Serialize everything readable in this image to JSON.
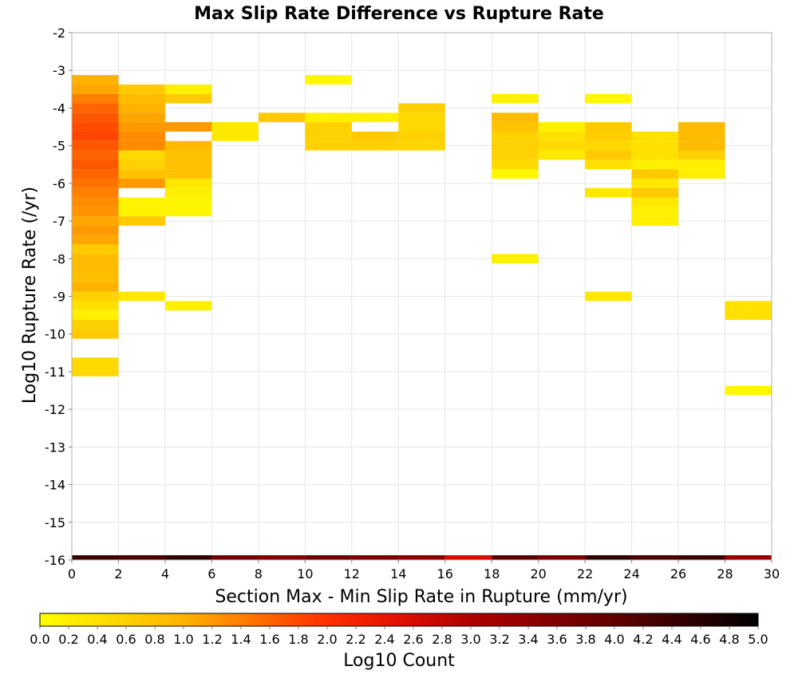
{
  "chart_data": {
    "type": "heatmap",
    "title": "Max Slip Rate Difference vs Rupture Rate",
    "xlabel": "Section Max - Min Slip Rate in Rupture (mm/yr)",
    "ylabel": "Log10 Rupture Rate (/yr)",
    "xlim": [
      0,
      30
    ],
    "ylim": [
      -16,
      -2
    ],
    "x_ticks": [
      "0",
      "2",
      "4",
      "6",
      "8",
      "10",
      "12",
      "14",
      "16",
      "18",
      "20",
      "22",
      "24",
      "26",
      "28",
      "30"
    ],
    "y_ticks": [
      "-2",
      "-3",
      "-4",
      "-5",
      "-6",
      "-7",
      "-8",
      "-9",
      "-10",
      "-11",
      "-12",
      "-13",
      "-14",
      "-15",
      "-16"
    ],
    "bin_width_x": 2,
    "bin_height_y": 0.25,
    "grid": true,
    "colorscale": {
      "label": "Log10 Count",
      "min": 0.0,
      "max": 5.0,
      "ticks": [
        "0.0",
        "0.2",
        "0.4",
        "0.6",
        "0.8",
        "1.0",
        "1.2",
        "1.4",
        "1.6",
        "1.8",
        "2.0",
        "2.2",
        "2.4",
        "2.6",
        "2.8",
        "3.0",
        "3.2",
        "3.4",
        "3.6",
        "3.8",
        "4.0",
        "4.2",
        "4.4",
        "4.6",
        "4.8",
        "5.0"
      ],
      "stops": [
        {
          "v": 0.0,
          "color": "#ffff00"
        },
        {
          "v": 1.0,
          "color": "#ffb300"
        },
        {
          "v": 2.0,
          "color": "#ff3000"
        },
        {
          "v": 2.5,
          "color": "#e01000"
        },
        {
          "v": 3.0,
          "color": "#b00000"
        },
        {
          "v": 4.0,
          "color": "#600000"
        },
        {
          "v": 5.0,
          "color": "#000000"
        }
      ]
    },
    "cells": [
      {
        "x": 0,
        "y": -3.25,
        "v": 1.0
      },
      {
        "x": 0,
        "y": -3.5,
        "v": 1.1
      },
      {
        "x": 0,
        "y": -3.75,
        "v": 1.4
      },
      {
        "x": 0,
        "y": -4.0,
        "v": 1.6
      },
      {
        "x": 0,
        "y": -4.25,
        "v": 1.7
      },
      {
        "x": 0,
        "y": -4.5,
        "v": 1.8
      },
      {
        "x": 0,
        "y": -4.75,
        "v": 1.85
      },
      {
        "x": 0,
        "y": -5.0,
        "v": 1.7
      },
      {
        "x": 0,
        "y": -5.25,
        "v": 1.6
      },
      {
        "x": 0,
        "y": -5.5,
        "v": 1.7
      },
      {
        "x": 0,
        "y": -5.75,
        "v": 1.6
      },
      {
        "x": 0,
        "y": -6.0,
        "v": 1.5
      },
      {
        "x": 0,
        "y": -6.25,
        "v": 1.4
      },
      {
        "x": 0,
        "y": -6.5,
        "v": 1.3
      },
      {
        "x": 0,
        "y": -6.75,
        "v": 1.25
      },
      {
        "x": 0,
        "y": -7.0,
        "v": 1.1
      },
      {
        "x": 0,
        "y": -7.25,
        "v": 1.2
      },
      {
        "x": 0,
        "y": -7.5,
        "v": 1.1
      },
      {
        "x": 0,
        "y": -7.75,
        "v": 0.7
      },
      {
        "x": 0,
        "y": -8.0,
        "v": 0.9
      },
      {
        "x": 0,
        "y": -8.25,
        "v": 0.9
      },
      {
        "x": 0,
        "y": -8.5,
        "v": 0.85
      },
      {
        "x": 0,
        "y": -8.75,
        "v": 1.0
      },
      {
        "x": 0,
        "y": -9.0,
        "v": 0.6
      },
      {
        "x": 0,
        "y": -9.25,
        "v": 0.4
      },
      {
        "x": 0,
        "y": -9.5,
        "v": 0.2
      },
      {
        "x": 0,
        "y": -9.75,
        "v": 0.6
      },
      {
        "x": 0,
        "y": -10.0,
        "v": 0.7
      },
      {
        "x": 0,
        "y": -10.75,
        "v": 0.5
      },
      {
        "x": 0,
        "y": -11.0,
        "v": 0.5
      },
      {
        "x": 2,
        "y": -3.5,
        "v": 0.7
      },
      {
        "x": 2,
        "y": -3.75,
        "v": 0.9
      },
      {
        "x": 2,
        "y": -4.0,
        "v": 1.0
      },
      {
        "x": 2,
        "y": -4.25,
        "v": 1.1
      },
      {
        "x": 2,
        "y": -4.5,
        "v": 1.2
      },
      {
        "x": 2,
        "y": -4.75,
        "v": 1.3
      },
      {
        "x": 2,
        "y": -5.0,
        "v": 1.3
      },
      {
        "x": 2,
        "y": -5.25,
        "v": 0.5
      },
      {
        "x": 2,
        "y": -5.5,
        "v": 0.6
      },
      {
        "x": 2,
        "y": -5.75,
        "v": 0.8
      },
      {
        "x": 2,
        "y": -6.0,
        "v": 1.2
      },
      {
        "x": 2,
        "y": -6.5,
        "v": 0.15
      },
      {
        "x": 2,
        "y": -6.75,
        "v": 0.15
      },
      {
        "x": 2,
        "y": -7.0,
        "v": 0.7
      },
      {
        "x": 2,
        "y": -9.0,
        "v": 0.3
      },
      {
        "x": 4,
        "y": -3.5,
        "v": 0.2
      },
      {
        "x": 4,
        "y": -3.75,
        "v": 0.7
      },
      {
        "x": 4,
        "y": -4.5,
        "v": 1.2
      },
      {
        "x": 4,
        "y": -5.0,
        "v": 0.9
      },
      {
        "x": 4,
        "y": -5.25,
        "v": 0.8
      },
      {
        "x": 4,
        "y": -5.5,
        "v": 0.8
      },
      {
        "x": 4,
        "y": -5.75,
        "v": 0.8
      },
      {
        "x": 4,
        "y": -6.0,
        "v": 0.3
      },
      {
        "x": 4,
        "y": -6.25,
        "v": 0.2
      },
      {
        "x": 4,
        "y": -6.5,
        "v": 0.1
      },
      {
        "x": 4,
        "y": -6.75,
        "v": 0.1
      },
      {
        "x": 4,
        "y": -9.25,
        "v": 0.2
      },
      {
        "x": 6,
        "y": -4.5,
        "v": 0.3
      },
      {
        "x": 6,
        "y": -4.75,
        "v": 0.3
      },
      {
        "x": 8,
        "y": -4.25,
        "v": 0.7
      },
      {
        "x": 10,
        "y": -3.25,
        "v": 0.1
      },
      {
        "x": 10,
        "y": -4.25,
        "v": 0.2
      },
      {
        "x": 10,
        "y": -4.5,
        "v": 0.6
      },
      {
        "x": 10,
        "y": -4.75,
        "v": 0.6
      },
      {
        "x": 10,
        "y": -5.0,
        "v": 0.6
      },
      {
        "x": 12,
        "y": -4.25,
        "v": 0.2
      },
      {
        "x": 12,
        "y": -4.75,
        "v": 0.7
      },
      {
        "x": 12,
        "y": -5.0,
        "v": 0.6
      },
      {
        "x": 14,
        "y": -4.0,
        "v": 0.6
      },
      {
        "x": 14,
        "y": -4.25,
        "v": 0.5
      },
      {
        "x": 14,
        "y": -4.5,
        "v": 0.5
      },
      {
        "x": 14,
        "y": -4.75,
        "v": 0.6
      },
      {
        "x": 14,
        "y": -5.0,
        "v": 0.55
      },
      {
        "x": 18,
        "y": -3.75,
        "v": 0.2
      },
      {
        "x": 18,
        "y": -4.25,
        "v": 0.9
      },
      {
        "x": 18,
        "y": -4.5,
        "v": 0.8
      },
      {
        "x": 18,
        "y": -4.75,
        "v": 0.6
      },
      {
        "x": 18,
        "y": -5.0,
        "v": 0.6
      },
      {
        "x": 18,
        "y": -5.25,
        "v": 0.6
      },
      {
        "x": 18,
        "y": -5.5,
        "v": 0.5
      },
      {
        "x": 18,
        "y": -5.75,
        "v": 0.1
      },
      {
        "x": 18,
        "y": -8.0,
        "v": 0.2
      },
      {
        "x": 20,
        "y": -4.5,
        "v": 0.2
      },
      {
        "x": 20,
        "y": -4.75,
        "v": 0.4
      },
      {
        "x": 20,
        "y": -5.0,
        "v": 0.5
      },
      {
        "x": 20,
        "y": -5.25,
        "v": 0.3
      },
      {
        "x": 22,
        "y": -3.75,
        "v": 0.1
      },
      {
        "x": 22,
        "y": -4.5,
        "v": 0.7
      },
      {
        "x": 22,
        "y": -4.75,
        "v": 0.65
      },
      {
        "x": 22,
        "y": -5.0,
        "v": 0.5
      },
      {
        "x": 22,
        "y": -5.25,
        "v": 0.7
      },
      {
        "x": 22,
        "y": -5.5,
        "v": 0.4
      },
      {
        "x": 22,
        "y": -6.25,
        "v": 0.3
      },
      {
        "x": 22,
        "y": -9.0,
        "v": 0.3
      },
      {
        "x": 24,
        "y": -4.75,
        "v": 0.4
      },
      {
        "x": 24,
        "y": -5.0,
        "v": 0.4
      },
      {
        "x": 24,
        "y": -5.25,
        "v": 0.4
      },
      {
        "x": 24,
        "y": -5.5,
        "v": 0.2
      },
      {
        "x": 24,
        "y": -5.75,
        "v": 0.7
      },
      {
        "x": 24,
        "y": -6.0,
        "v": 0.3
      },
      {
        "x": 24,
        "y": -6.25,
        "v": 0.7
      },
      {
        "x": 24,
        "y": -6.5,
        "v": 0.3
      },
      {
        "x": 24,
        "y": -6.75,
        "v": 0.2
      },
      {
        "x": 24,
        "y": -7.0,
        "v": 0.2
      },
      {
        "x": 26,
        "y": -4.5,
        "v": 0.9
      },
      {
        "x": 26,
        "y": -4.75,
        "v": 0.9
      },
      {
        "x": 26,
        "y": -5.0,
        "v": 0.9
      },
      {
        "x": 26,
        "y": -5.25,
        "v": 0.6
      },
      {
        "x": 26,
        "y": -5.5,
        "v": 0.2
      },
      {
        "x": 26,
        "y": -5.75,
        "v": 0.2
      },
      {
        "x": 28,
        "y": -9.25,
        "v": 0.4
      },
      {
        "x": 28,
        "y": -9.5,
        "v": 0.4
      },
      {
        "x": 28,
        "y": -11.5,
        "v": 0.1
      },
      {
        "x": 0,
        "y": -16.0,
        "v": 4.4
      },
      {
        "x": 2,
        "y": -16.0,
        "v": 4.2
      },
      {
        "x": 4,
        "y": -16.0,
        "v": 4.5
      },
      {
        "x": 6,
        "y": -16.0,
        "v": 3.8
      },
      {
        "x": 8,
        "y": -16.0,
        "v": 3.6
      },
      {
        "x": 10,
        "y": -16.0,
        "v": 3.9
      },
      {
        "x": 12,
        "y": -16.0,
        "v": 3.7
      },
      {
        "x": 14,
        "y": -16.0,
        "v": 3.5
      },
      {
        "x": 16,
        "y": -16.0,
        "v": 2.6
      },
      {
        "x": 18,
        "y": -16.0,
        "v": 4.1
      },
      {
        "x": 20,
        "y": -16.0,
        "v": 3.7
      },
      {
        "x": 22,
        "y": -16.0,
        "v": 4.5
      },
      {
        "x": 24,
        "y": -16.0,
        "v": 4.2
      },
      {
        "x": 26,
        "y": -16.0,
        "v": 4.4
      },
      {
        "x": 28,
        "y": -16.0,
        "v": 3.3
      }
    ]
  }
}
